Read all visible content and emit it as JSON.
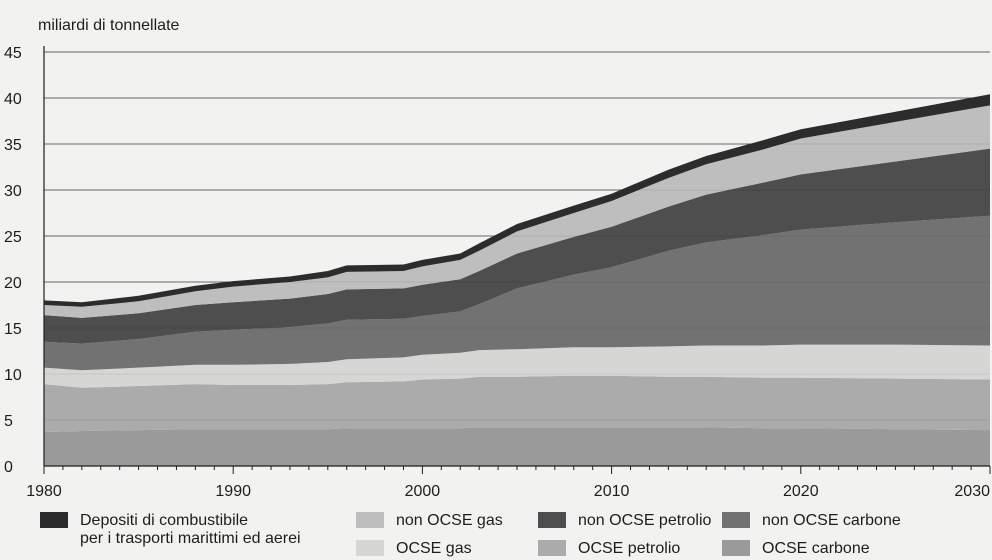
{
  "chart_data": {
    "type": "area",
    "stacked": true,
    "title": "",
    "ylabel": "miliardi di tonnellate",
    "xlabel": "",
    "ylim": [
      0,
      45
    ],
    "xlim": [
      1980,
      2030
    ],
    "yticks": [
      0,
      5,
      10,
      15,
      20,
      25,
      30,
      35,
      40,
      45
    ],
    "xticks": [
      1980,
      1990,
      2000,
      2010,
      2020,
      2030
    ],
    "grid": "horizontal",
    "legend_position": "bottom",
    "x": [
      1980,
      1982,
      1985,
      1988,
      1990,
      1993,
      1995,
      1996,
      1999,
      2000,
      2002,
      2003,
      2005,
      2008,
      2010,
      2013,
      2015,
      2018,
      2020,
      2025,
      2030
    ],
    "series": [
      {
        "name": "OCSE carbone",
        "color": "#9a9a9a",
        "values": [
          3.7,
          3.8,
          3.9,
          4.0,
          4.0,
          4.0,
          4.0,
          4.1,
          4.1,
          4.1,
          4.1,
          4.2,
          4.2,
          4.2,
          4.2,
          4.2,
          4.2,
          4.1,
          4.1,
          4.0,
          3.9
        ]
      },
      {
        "name": "OCSE petrolio",
        "color": "#ababab",
        "values": [
          5.2,
          4.7,
          4.8,
          4.9,
          4.8,
          4.8,
          4.9,
          5.0,
          5.1,
          5.3,
          5.4,
          5.5,
          5.5,
          5.6,
          5.6,
          5.5,
          5.5,
          5.5,
          5.5,
          5.5,
          5.5
        ]
      },
      {
        "name": "OCSE gas",
        "color": "#d6d6d4",
        "values": [
          1.8,
          1.9,
          2.0,
          2.1,
          2.2,
          2.3,
          2.4,
          2.5,
          2.6,
          2.7,
          2.8,
          2.9,
          3.0,
          3.1,
          3.1,
          3.3,
          3.4,
          3.5,
          3.6,
          3.7,
          3.7
        ]
      },
      {
        "name": "non OCSE carbone",
        "color": "#727272",
        "values": [
          2.8,
          2.9,
          3.1,
          3.6,
          3.8,
          4.0,
          4.2,
          4.3,
          4.2,
          4.2,
          4.5,
          5.0,
          6.6,
          7.9,
          8.7,
          10.4,
          11.2,
          12.0,
          12.5,
          13.3,
          14.1
        ]
      },
      {
        "name": "non OCSE petrolio",
        "color": "#4e4e4e",
        "values": [
          2.9,
          2.8,
          2.8,
          2.9,
          3.0,
          3.1,
          3.2,
          3.3,
          3.3,
          3.4,
          3.5,
          3.6,
          3.8,
          4.1,
          4.4,
          4.8,
          5.2,
          5.7,
          6.0,
          6.6,
          7.3
        ]
      },
      {
        "name": "non OCSE gas",
        "color": "#bebebe",
        "values": [
          1.1,
          1.2,
          1.3,
          1.5,
          1.7,
          1.8,
          1.8,
          1.9,
          1.9,
          2.0,
          2.1,
          2.2,
          2.4,
          2.6,
          2.8,
          3.1,
          3.3,
          3.6,
          3.9,
          4.3,
          4.7
        ]
      },
      {
        "name": "Depositi di combustibile per i trasporti marittimi ed aerei",
        "color": "#2c2c2c",
        "values": [
          0.5,
          0.5,
          0.6,
          0.6,
          0.6,
          0.6,
          0.7,
          0.7,
          0.7,
          0.7,
          0.7,
          0.8,
          0.8,
          0.8,
          0.8,
          0.9,
          0.9,
          1.0,
          1.0,
          1.1,
          1.2
        ]
      }
    ],
    "legend": [
      {
        "lines": [
          "Depositi di combustibile",
          "per i trasporti marittimi ed aerei"
        ],
        "color": "#2c2c2c"
      },
      {
        "lines": [
          "non OCSE gas"
        ],
        "color": "#bebebe"
      },
      {
        "lines": [
          "non OCSE petrolio"
        ],
        "color": "#4e4e4e"
      },
      {
        "lines": [
          "non OCSE carbone"
        ],
        "color": "#727272"
      },
      {
        "lines": [
          "OCSE gas"
        ],
        "color": "#d6d6d4"
      },
      {
        "lines": [
          "OCSE petrolio"
        ],
        "color": "#ababab"
      },
      {
        "lines": [
          "OCSE carbone"
        ],
        "color": "#9a9a9a"
      }
    ]
  }
}
